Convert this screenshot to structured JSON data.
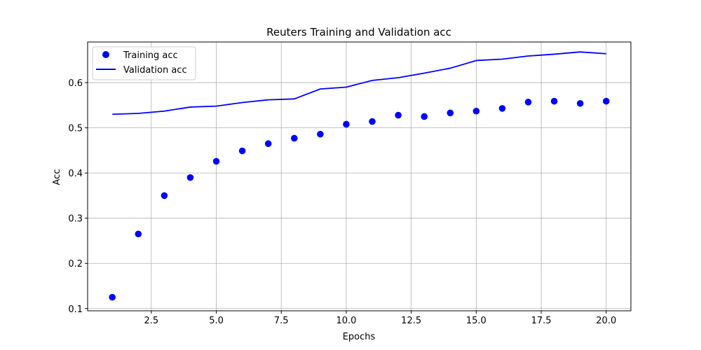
{
  "chart_data": {
    "type": "scatter+line",
    "title": "Reuters Training and Validation acc",
    "xlabel": "Epochs",
    "ylabel": "Acc",
    "xlim": [
      0.05,
      20.95
    ],
    "ylim": [
      0.095,
      0.69
    ],
    "xticks": [
      2.5,
      5.0,
      7.5,
      10.0,
      12.5,
      15.0,
      17.5,
      20.0
    ],
    "xtick_labels": [
      "2.5",
      "5.0",
      "7.5",
      "10.0",
      "12.5",
      "15.0",
      "17.5",
      "20.0"
    ],
    "yticks": [
      0.1,
      0.2,
      0.3,
      0.4,
      0.5,
      0.6
    ],
    "ytick_labels": [
      "0.1",
      "0.2",
      "0.3",
      "0.4",
      "0.5",
      "0.6"
    ],
    "grid": true,
    "legend_position": "top-left",
    "x": [
      1,
      2,
      3,
      4,
      5,
      6,
      7,
      8,
      9,
      10,
      11,
      12,
      13,
      14,
      15,
      16,
      17,
      18,
      19,
      20
    ],
    "series": [
      {
        "name": "Training acc",
        "style": "points",
        "color": "#0000ff",
        "values": [
          0.125,
          0.265,
          0.35,
          0.39,
          0.426,
          0.449,
          0.465,
          0.477,
          0.486,
          0.508,
          0.514,
          0.528,
          0.525,
          0.533,
          0.537,
          0.543,
          0.557,
          0.559,
          0.554,
          0.559
        ]
      },
      {
        "name": "Validation acc",
        "style": "line",
        "color": "#0000ff",
        "values": [
          0.53,
          0.532,
          0.537,
          0.546,
          0.548,
          0.556,
          0.562,
          0.564,
          0.586,
          0.59,
          0.605,
          0.611,
          0.621,
          0.632,
          0.649,
          0.652,
          0.659,
          0.663,
          0.668,
          0.664
        ]
      }
    ]
  }
}
